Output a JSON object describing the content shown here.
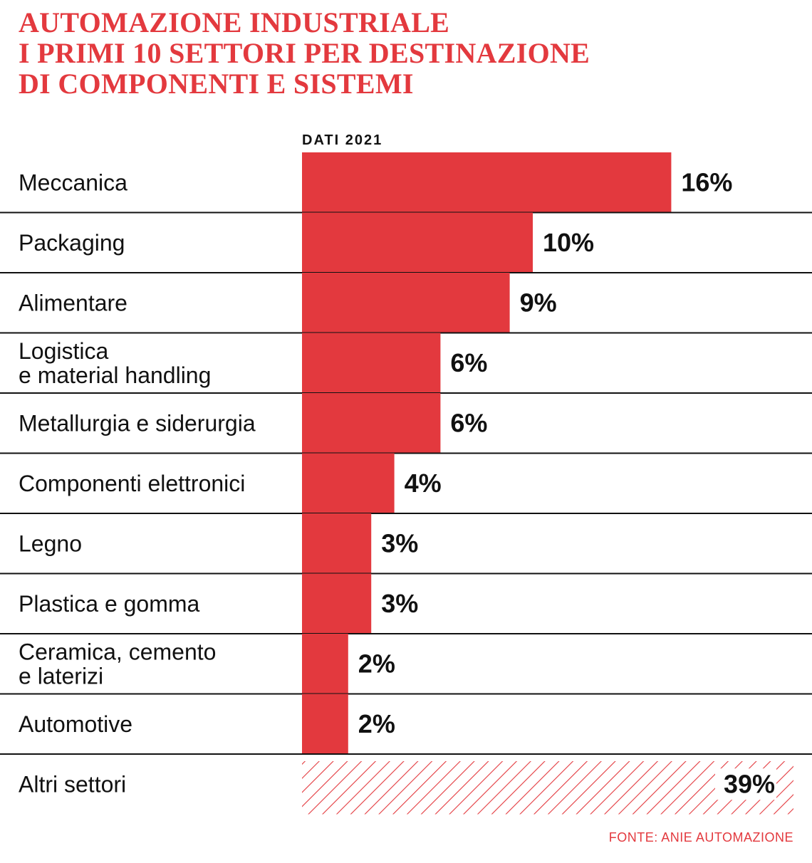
{
  "title_lines": [
    "AUTOMAZIONE INDUSTRIALE",
    "I PRIMI 10 SETTORI PER DESTINAZIONE",
    "DI COMPONENTI E SISTEMI"
  ],
  "source": "FONTE: ANIE AUTOMAZIONE",
  "colors": {
    "accent": "#e3393e",
    "text": "#111111",
    "rule": "#111111"
  },
  "chart_data": {
    "type": "bar",
    "orientation": "horizontal",
    "title": "AUTOMAZIONE INDUSTRIALE I PRIMI 10 SETTORI PER DESTINAZIONE DI COMPONENTI E SISTEMI",
    "subtitle": "DATI 2021",
    "categories": [
      [
        "Meccanica"
      ],
      [
        "Packaging"
      ],
      [
        "Alimentare"
      ],
      [
        "Logistica",
        "e material handling"
      ],
      [
        "Metallurgia e siderurgia"
      ],
      [
        "Componenti elettronici"
      ],
      [
        "Legno"
      ],
      [
        "Plastica e gomma"
      ],
      [
        "Ceramica, cemento",
        "e laterizi"
      ],
      [
        "Automotive"
      ]
    ],
    "values": [
      16,
      10,
      9,
      6,
      6,
      4,
      3,
      3,
      2,
      2
    ],
    "value_labels": [
      "16%",
      "10%",
      "9%",
      "6%",
      "6%",
      "4%",
      "3%",
      "3%",
      "2%",
      "2%"
    ],
    "other": {
      "label": "Altri settori",
      "value": 39,
      "value_label": "39%",
      "style": "hatched"
    },
    "unit": "%",
    "legend": "none",
    "grid": false
  }
}
